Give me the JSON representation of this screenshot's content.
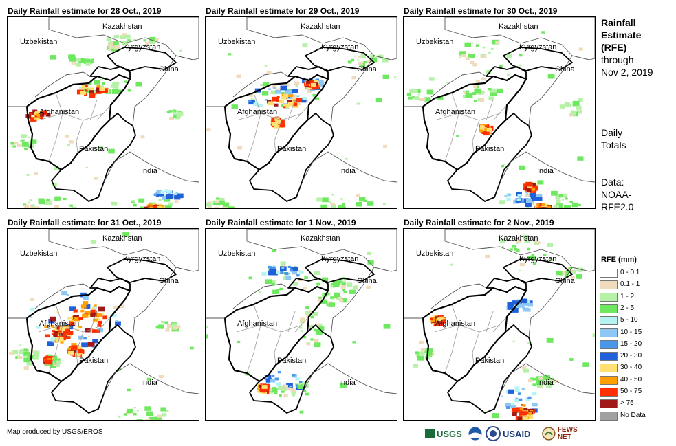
{
  "panels": [
    {
      "title": "Daily Rainfall estimate for 28 Oct., 2019"
    },
    {
      "title": "Daily Rainfall estimate for 29 Oct., 2019"
    },
    {
      "title": "Daily Rainfall estimate for 30 Oct., 2019"
    },
    {
      "title": "Daily Rainfall estimate for 31 Oct., 2019"
    },
    {
      "title": "Daily Rainfall estimate for 1 Nov., 2019"
    },
    {
      "title": "Daily Rainfall estimate for 2 Nov., 2019"
    }
  ],
  "place_labels": {
    "kazakhstan": "Kazakhstan",
    "uzbekistan": "Uzbekistan",
    "kyrgyzstan": "Kyrgyzstan",
    "china": "China",
    "afghanistan": "Afghanistan",
    "pakistan": "Pakistan",
    "india": "India"
  },
  "side": {
    "title_bold": "Rainfall Estimate (RFE)",
    "title_line1": "Rainfall",
    "title_line2": "Estimate",
    "title_line3": "(RFE)",
    "through": "through",
    "date": "Nov 2, 2019",
    "daily1": "Daily",
    "daily2": "Totals",
    "data1": "Data:",
    "data2": "NOAA-",
    "data3": "RFE2.0"
  },
  "legend": {
    "title": "RFE (mm)",
    "items": [
      {
        "label": "0 - 0.1",
        "color": "#ffffff"
      },
      {
        "label": "0.1 - 1",
        "color": "#f0dcbc"
      },
      {
        "label": "1 - 2",
        "color": "#b6f1a8"
      },
      {
        "label": "2 - 5",
        "color": "#6ee85e"
      },
      {
        "label": "5 - 10",
        "color": "#b6f3f3"
      },
      {
        "label": "10 - 15",
        "color": "#8ec7f3"
      },
      {
        "label": "15 - 20",
        "color": "#4a96e8"
      },
      {
        "label": "20 - 30",
        "color": "#2060d8"
      },
      {
        "label": "30 - 40",
        "color": "#ffe070"
      },
      {
        "label": "40 - 50",
        "color": "#ffa000"
      },
      {
        "label": "50 - 75",
        "color": "#ff3000"
      },
      {
        "label": "> 75",
        "color": "#a01818"
      },
      {
        "label": "No Data",
        "color": "#a0a0a0"
      }
    ]
  },
  "footer": "Map produced by USGS/EROS",
  "logos": {
    "usgs": "USGS",
    "usaid": "USAID",
    "fewsnet": "FEWS NET"
  }
}
